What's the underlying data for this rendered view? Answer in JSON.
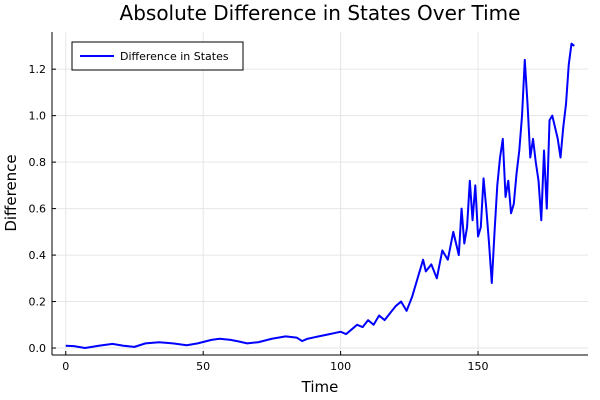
{
  "chart_data": {
    "type": "line",
    "title": "Absolute Difference in States Over Time",
    "xlabel": "Time",
    "ylabel": "Difference",
    "xlim": [
      -5,
      190
    ],
    "ylim": [
      -0.03,
      1.36
    ],
    "xticks": [
      0,
      50,
      100,
      150
    ],
    "yticks": [
      0.0,
      0.2,
      0.4,
      0.6,
      0.8,
      1.0,
      1.2
    ],
    "ytick_labels": [
      "0.0",
      "0.2",
      "0.4",
      "0.6",
      "0.8",
      "1.0",
      "1.2"
    ],
    "grid": true,
    "legend_position": "top-left",
    "series": [
      {
        "name": "Difference in States",
        "color": "#0000ff",
        "x": [
          0,
          3,
          7,
          12,
          17,
          21,
          25,
          29,
          34,
          39,
          44,
          48,
          53,
          56,
          60,
          63,
          66,
          70,
          75,
          80,
          84,
          86,
          88,
          90,
          92,
          94,
          96,
          98,
          100,
          102,
          104,
          106,
          108,
          110,
          112,
          114,
          116,
          118,
          120,
          122,
          124,
          126,
          128,
          130,
          131,
          133,
          135,
          137,
          139,
          141,
          143,
          144,
          145,
          146,
          147,
          148,
          149,
          150,
          151,
          152,
          153,
          154,
          155,
          156,
          157,
          158,
          159,
          160,
          161,
          162,
          163,
          164,
          165,
          166,
          167,
          168,
          169,
          170,
          171,
          172,
          173,
          174,
          175,
          176,
          177,
          178,
          179,
          180,
          181,
          182,
          183,
          184,
          185
        ],
        "y": [
          0.01,
          0.008,
          0.0,
          0.01,
          0.018,
          0.01,
          0.005,
          0.02,
          0.025,
          0.02,
          0.012,
          0.02,
          0.035,
          0.04,
          0.035,
          0.028,
          0.02,
          0.025,
          0.04,
          0.05,
          0.045,
          0.03,
          0.04,
          0.045,
          0.05,
          0.055,
          0.06,
          0.065,
          0.07,
          0.06,
          0.08,
          0.1,
          0.09,
          0.12,
          0.1,
          0.14,
          0.12,
          0.15,
          0.18,
          0.2,
          0.16,
          0.22,
          0.3,
          0.38,
          0.33,
          0.36,
          0.3,
          0.42,
          0.38,
          0.5,
          0.4,
          0.6,
          0.45,
          0.52,
          0.72,
          0.55,
          0.7,
          0.48,
          0.52,
          0.73,
          0.6,
          0.45,
          0.28,
          0.5,
          0.7,
          0.82,
          0.9,
          0.65,
          0.72,
          0.58,
          0.62,
          0.75,
          0.85,
          1.0,
          1.24,
          1.05,
          0.82,
          0.9,
          0.8,
          0.72,
          0.55,
          0.85,
          0.6,
          0.98,
          1.0,
          0.95,
          0.9,
          0.82,
          0.95,
          1.05,
          1.22,
          1.31,
          1.3
        ]
      }
    ]
  }
}
